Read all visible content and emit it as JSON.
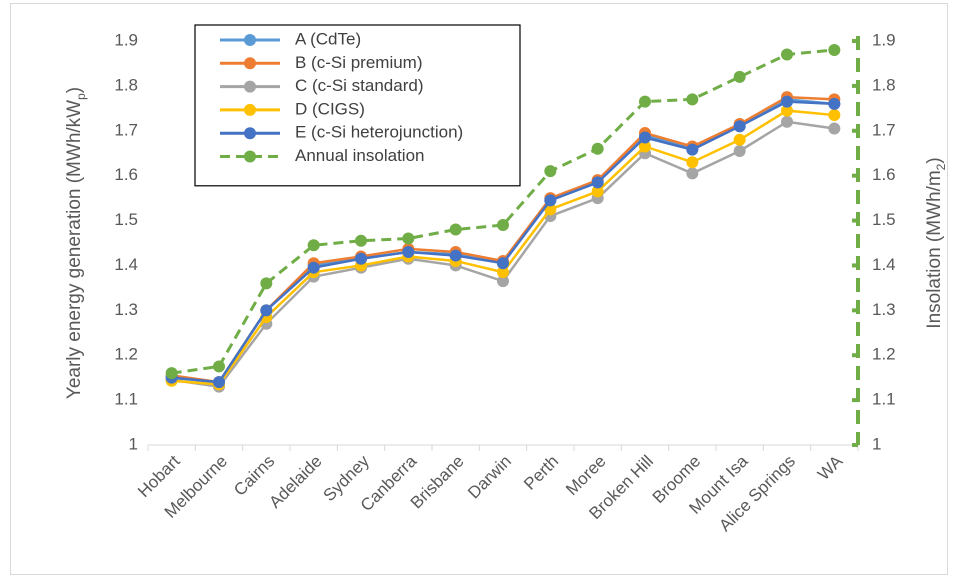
{
  "chart_data": {
    "type": "line",
    "categories": [
      "Hobart",
      "Melbourne",
      "Cairns",
      "Adelaide",
      "Sydney",
      "Canberra",
      "Brisbane",
      "Darwin",
      "Perth",
      "Moree",
      "Broken Hill",
      "Broome",
      "Mount Isa",
      "Alice Springs",
      "WA"
    ],
    "y_label": [
      "Yearly energy generation (MWh/kW",
      "p",
      ")"
    ],
    "y2_label": [
      "Insolation (MWh/m",
      "2",
      ")"
    ],
    "ylim": [
      1,
      1.9
    ],
    "yticks": [
      1,
      1.1,
      1.2,
      1.3,
      1.4,
      1.5,
      1.6,
      1.7,
      1.8,
      1.9
    ],
    "y2lim": [
      1,
      1.9
    ],
    "y2ticks": [
      1,
      1.1,
      1.2,
      1.3,
      1.4,
      1.5,
      1.6,
      1.7,
      1.8,
      1.9
    ],
    "y2_color": "#70ad47",
    "legend": "upper left",
    "series": [
      {
        "name": "A (CdTe)",
        "color": "#5b9bd5",
        "values": [
          1.15,
          1.14,
          1.3,
          1.4,
          1.415,
          1.43,
          1.425,
          1.405,
          1.545,
          1.585,
          1.69,
          1.66,
          1.71,
          1.77,
          1.76
        ]
      },
      {
        "name": "B (c-Si premium)",
        "color": "#ed7d31",
        "values": [
          1.155,
          1.14,
          1.3,
          1.405,
          1.42,
          1.437,
          1.43,
          1.41,
          1.55,
          1.59,
          1.695,
          1.665,
          1.715,
          1.775,
          1.77
        ]
      },
      {
        "name": "C (c-Si standard)",
        "color": "#a5a5a5",
        "values": [
          1.145,
          1.13,
          1.27,
          1.375,
          1.395,
          1.415,
          1.4,
          1.365,
          1.51,
          1.55,
          1.65,
          1.605,
          1.655,
          1.72,
          1.705
        ]
      },
      {
        "name": "D (CIGS)",
        "color": "#ffc000",
        "values": [
          1.143,
          1.135,
          1.285,
          1.385,
          1.4,
          1.42,
          1.41,
          1.385,
          1.525,
          1.565,
          1.665,
          1.63,
          1.68,
          1.745,
          1.735
        ]
      },
      {
        "name": "E (c-Si heterojunction)",
        "color": "#4472c4",
        "values": [
          1.15,
          1.14,
          1.3,
          1.395,
          1.415,
          1.43,
          1.422,
          1.405,
          1.545,
          1.585,
          1.685,
          1.658,
          1.71,
          1.765,
          1.76
        ]
      },
      {
        "name": "Annual insolation",
        "color": "#70ad47",
        "dashed": true,
        "axis": "y2",
        "values": [
          1.16,
          1.175,
          1.36,
          1.445,
          1.455,
          1.46,
          1.48,
          1.49,
          1.61,
          1.66,
          1.765,
          1.77,
          1.82,
          1.87,
          1.88
        ]
      }
    ]
  }
}
